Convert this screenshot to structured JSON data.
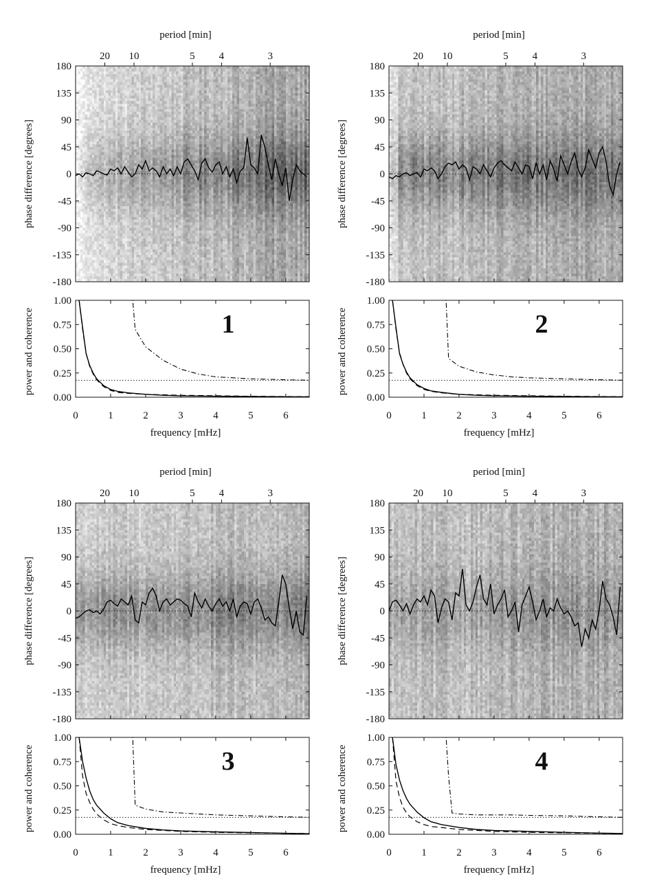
{
  "chart_data": [
    {
      "type": "heatmap+line",
      "panel_number": "1",
      "top_axis_label": "period [min]",
      "top_ticks": [
        "20",
        "10",
        "5",
        "4",
        "3"
      ],
      "top_tick_values_min": [
        20,
        10,
        5,
        4,
        3
      ],
      "x_ticks": [
        "0",
        "1",
        "2",
        "3",
        "4",
        "5",
        "6"
      ],
      "xlabel": "frequency [mHz]",
      "xlim": [
        0,
        6.67
      ],
      "phase_ylabel": "phase difference [degrees]",
      "phase_yticks": [
        "180",
        "135",
        "90",
        "45",
        "0",
        "-45",
        "-90",
        "-135",
        "-180"
      ],
      "phase_ylim": [
        -180,
        180
      ],
      "phase_x": [
        0.0,
        0.1,
        0.2,
        0.3,
        0.4,
        0.5,
        0.6,
        0.7,
        0.8,
        0.9,
        1.0,
        1.1,
        1.2,
        1.3,
        1.4,
        1.5,
        1.6,
        1.7,
        1.8,
        1.9,
        2.0,
        2.1,
        2.2,
        2.3,
        2.4,
        2.5,
        2.6,
        2.7,
        2.8,
        2.9,
        3.0,
        3.1,
        3.2,
        3.3,
        3.4,
        3.5,
        3.6,
        3.7,
        3.8,
        3.9,
        4.0,
        4.1,
        4.2,
        4.3,
        4.4,
        4.5,
        4.6,
        4.7,
        4.8,
        4.9,
        5.0,
        5.1,
        5.2,
        5.3,
        5.4,
        5.5,
        5.6,
        5.7,
        5.8,
        5.9,
        6.0,
        6.1,
        6.2,
        6.3,
        6.4,
        6.5,
        6.6
      ],
      "phase_mean": [
        -3,
        0,
        -5,
        2,
        0,
        -3,
        5,
        3,
        0,
        -2,
        8,
        5,
        10,
        0,
        12,
        3,
        -5,
        0,
        15,
        8,
        22,
        5,
        10,
        5,
        -5,
        12,
        0,
        8,
        -3,
        12,
        0,
        20,
        25,
        15,
        5,
        -10,
        18,
        25,
        10,
        3,
        15,
        20,
        0,
        12,
        -5,
        8,
        -15,
        5,
        10,
        60,
        15,
        10,
        0,
        65,
        45,
        15,
        -10,
        25,
        0,
        -20,
        10,
        -45,
        -10,
        15,
        5,
        0,
        -5
      ],
      "power_ylabel": "power and coherence",
      "power_yticks": [
        "1.00",
        "0.75",
        "0.50",
        "0.25",
        "0.00"
      ],
      "power_ylim": [
        0,
        1
      ],
      "power_x": [
        0.1,
        0.2,
        0.3,
        0.4,
        0.5,
        0.6,
        0.8,
        1.0,
        1.2,
        1.5,
        2.0,
        2.5,
        3.0,
        4.0,
        5.0,
        6.0,
        6.67
      ],
      "power_solid": [
        1.0,
        0.72,
        0.45,
        0.33,
        0.25,
        0.19,
        0.12,
        0.08,
        0.06,
        0.045,
        0.03,
        0.02,
        0.015,
        0.01,
        0.007,
        0.005,
        0.004
      ],
      "power_dashed": [
        1.0,
        0.7,
        0.45,
        0.32,
        0.24,
        0.18,
        0.11,
        0.07,
        0.05,
        0.04,
        0.03,
        0.025,
        0.02,
        0.015,
        0.01,
        0.007,
        0.006
      ],
      "coherence_x": [
        0.0,
        1.6,
        1.63,
        1.7,
        2.0,
        2.5,
        3.0,
        3.5,
        4.0,
        5.0,
        6.0,
        6.67
      ],
      "coherence": [
        1.0,
        1.0,
        1.0,
        0.7,
        0.52,
        0.38,
        0.29,
        0.24,
        0.21,
        0.19,
        0.18,
        0.175
      ],
      "significance_level": 0.175
    },
    {
      "type": "heatmap+line",
      "panel_number": "2",
      "top_axis_label": "period [min]",
      "top_ticks": [
        "20",
        "10",
        "5",
        "4",
        "3"
      ],
      "top_tick_values_min": [
        20,
        10,
        5,
        4,
        3
      ],
      "x_ticks": [
        "0",
        "1",
        "2",
        "3",
        "4",
        "5",
        "6"
      ],
      "xlabel": "frequency [mHz]",
      "xlim": [
        0,
        6.67
      ],
      "phase_ylabel": "phase difference [degrees]",
      "phase_yticks": [
        "180",
        "135",
        "90",
        "45",
        "0",
        "-45",
        "-90",
        "-135",
        "-180"
      ],
      "phase_ylim": [
        -180,
        180
      ],
      "phase_x": [
        0.0,
        0.1,
        0.2,
        0.3,
        0.4,
        0.5,
        0.6,
        0.7,
        0.8,
        0.9,
        1.0,
        1.1,
        1.2,
        1.3,
        1.4,
        1.5,
        1.6,
        1.7,
        1.8,
        1.9,
        2.0,
        2.1,
        2.2,
        2.3,
        2.4,
        2.5,
        2.6,
        2.7,
        2.8,
        2.9,
        3.0,
        3.1,
        3.2,
        3.3,
        3.4,
        3.5,
        3.6,
        3.7,
        3.8,
        3.9,
        4.0,
        4.1,
        4.2,
        4.3,
        4.4,
        4.5,
        4.6,
        4.7,
        4.8,
        4.9,
        5.0,
        5.1,
        5.2,
        5.3,
        5.4,
        5.5,
        5.6,
        5.7,
        5.8,
        5.9,
        6.0,
        6.1,
        6.2,
        6.3,
        6.4,
        6.5,
        6.6
      ],
      "phase_mean": [
        -5,
        -8,
        -3,
        -5,
        0,
        2,
        -3,
        0,
        2,
        -5,
        8,
        5,
        10,
        5,
        -8,
        0,
        12,
        18,
        15,
        20,
        8,
        15,
        10,
        -10,
        12,
        8,
        0,
        15,
        5,
        -5,
        10,
        18,
        22,
        15,
        10,
        5,
        20,
        10,
        0,
        15,
        12,
        -8,
        18,
        0,
        15,
        -10,
        22,
        8,
        -12,
        30,
        15,
        0,
        20,
        35,
        8,
        -5,
        10,
        40,
        25,
        10,
        35,
        45,
        20,
        -20,
        -35,
        0,
        20
      ],
      "power_ylabel": "power and coherence",
      "power_yticks": [
        "1.00",
        "0.75",
        "0.50",
        "0.25",
        "0.00"
      ],
      "power_ylim": [
        0,
        1
      ],
      "power_x": [
        0.1,
        0.2,
        0.3,
        0.4,
        0.5,
        0.6,
        0.8,
        1.0,
        1.2,
        1.5,
        2.0,
        2.5,
        3.0,
        4.0,
        5.0,
        6.0,
        6.67
      ],
      "power_solid": [
        1.0,
        0.72,
        0.45,
        0.34,
        0.26,
        0.2,
        0.13,
        0.09,
        0.065,
        0.05,
        0.03,
        0.02,
        0.015,
        0.01,
        0.007,
        0.005,
        0.004
      ],
      "power_dashed": [
        1.0,
        0.7,
        0.46,
        0.34,
        0.25,
        0.19,
        0.12,
        0.08,
        0.06,
        0.045,
        0.03,
        0.025,
        0.02,
        0.015,
        0.01,
        0.007,
        0.006
      ],
      "coherence_x": [
        0.0,
        1.6,
        1.63,
        1.7,
        2.0,
        2.5,
        3.0,
        3.5,
        4.0,
        5.0,
        6.0,
        6.67
      ],
      "coherence": [
        1.0,
        1.0,
        1.0,
        0.4,
        0.32,
        0.26,
        0.23,
        0.21,
        0.2,
        0.19,
        0.18,
        0.175
      ],
      "significance_level": 0.175
    },
    {
      "type": "heatmap+line",
      "panel_number": "3",
      "top_axis_label": "period [min]",
      "top_ticks": [
        "20",
        "10",
        "5",
        "4",
        "3"
      ],
      "top_tick_values_min": [
        20,
        10,
        5,
        4,
        3
      ],
      "x_ticks": [
        "0",
        "1",
        "2",
        "3",
        "4",
        "5",
        "6"
      ],
      "xlabel": "frequency [mHz]",
      "xlim": [
        0,
        6.67
      ],
      "phase_ylabel": "phase difference [degrees]",
      "phase_yticks": [
        "180",
        "135",
        "90",
        "45",
        "0",
        "-45",
        "-90",
        "-135",
        "-180"
      ],
      "phase_ylim": [
        -180,
        180
      ],
      "phase_x": [
        0.0,
        0.1,
        0.2,
        0.3,
        0.4,
        0.5,
        0.6,
        0.7,
        0.8,
        0.9,
        1.0,
        1.1,
        1.2,
        1.3,
        1.4,
        1.5,
        1.6,
        1.7,
        1.8,
        1.9,
        2.0,
        2.1,
        2.2,
        2.3,
        2.4,
        2.5,
        2.6,
        2.7,
        2.8,
        2.9,
        3.0,
        3.1,
        3.2,
        3.3,
        3.4,
        3.5,
        3.6,
        3.7,
        3.8,
        3.9,
        4.0,
        4.1,
        4.2,
        4.3,
        4.4,
        4.5,
        4.6,
        4.7,
        4.8,
        4.9,
        5.0,
        5.1,
        5.2,
        5.3,
        5.4,
        5.5,
        5.6,
        5.7,
        5.8,
        5.9,
        6.0,
        6.1,
        6.2,
        6.3,
        6.4,
        6.5,
        6.6
      ],
      "phase_mean": [
        -12,
        -10,
        -5,
        0,
        2,
        -3,
        0,
        -5,
        3,
        15,
        18,
        12,
        8,
        20,
        15,
        10,
        25,
        -15,
        -20,
        15,
        10,
        30,
        38,
        25,
        0,
        15,
        20,
        10,
        15,
        20,
        18,
        12,
        8,
        -10,
        30,
        15,
        5,
        20,
        8,
        0,
        12,
        20,
        8,
        15,
        0,
        20,
        -10,
        8,
        15,
        12,
        -5,
        15,
        20,
        5,
        -15,
        -10,
        -20,
        -25,
        15,
        60,
        45,
        5,
        -30,
        0,
        -35,
        -40,
        25
      ],
      "power_ylabel": "power and coherence",
      "power_yticks": [
        "1.00",
        "0.75",
        "0.50",
        "0.25",
        "0.00"
      ],
      "power_ylim": [
        0,
        1
      ],
      "power_x": [
        0.1,
        0.2,
        0.3,
        0.4,
        0.5,
        0.6,
        0.8,
        1.0,
        1.2,
        1.5,
        2.0,
        2.5,
        3.0,
        4.0,
        5.0,
        6.0,
        6.67
      ],
      "power_solid": [
        1.0,
        0.75,
        0.58,
        0.45,
        0.36,
        0.3,
        0.22,
        0.16,
        0.12,
        0.09,
        0.06,
        0.045,
        0.035,
        0.025,
        0.018,
        0.01,
        0.006
      ],
      "power_dashed": [
        1.0,
        0.6,
        0.42,
        0.33,
        0.26,
        0.21,
        0.15,
        0.11,
        0.09,
        0.07,
        0.05,
        0.04,
        0.03,
        0.02,
        0.015,
        0.01,
        0.008
      ],
      "coherence_x": [
        0.0,
        1.6,
        1.63,
        1.7,
        2.0,
        2.5,
        3.0,
        3.5,
        4.0,
        5.0,
        6.0,
        6.67
      ],
      "coherence": [
        1.0,
        1.0,
        1.0,
        0.3,
        0.26,
        0.23,
        0.22,
        0.21,
        0.2,
        0.19,
        0.18,
        0.175
      ],
      "significance_level": 0.175
    },
    {
      "type": "heatmap+line",
      "panel_number": "4",
      "top_axis_label": "period [min]",
      "top_ticks": [
        "20",
        "10",
        "5",
        "4",
        "3"
      ],
      "top_tick_values_min": [
        20,
        10,
        5,
        4,
        3
      ],
      "x_ticks": [
        "0",
        "1",
        "2",
        "3",
        "4",
        "5",
        "6"
      ],
      "xlabel": "frequency [mHz]",
      "xlim": [
        0,
        6.67
      ],
      "phase_ylabel": "phase difference [degrees]",
      "phase_yticks": [
        "180",
        "135",
        "90",
        "45",
        "0",
        "-45",
        "-90",
        "-135",
        "-180"
      ],
      "phase_ylim": [
        -180,
        180
      ],
      "phase_x": [
        0.0,
        0.1,
        0.2,
        0.3,
        0.4,
        0.5,
        0.6,
        0.7,
        0.8,
        0.9,
        1.0,
        1.1,
        1.2,
        1.3,
        1.4,
        1.5,
        1.6,
        1.7,
        1.8,
        1.9,
        2.0,
        2.1,
        2.2,
        2.3,
        2.4,
        2.5,
        2.6,
        2.7,
        2.8,
        2.9,
        3.0,
        3.1,
        3.2,
        3.3,
        3.4,
        3.5,
        3.6,
        3.7,
        3.8,
        3.9,
        4.0,
        4.1,
        4.2,
        4.3,
        4.4,
        4.5,
        4.6,
        4.7,
        4.8,
        4.9,
        5.0,
        5.1,
        5.2,
        5.3,
        5.4,
        5.5,
        5.6,
        5.7,
        5.8,
        5.9,
        6.0,
        6.1,
        6.2,
        6.3,
        6.4,
        6.5,
        6.6
      ],
      "phase_mean": [
        0,
        15,
        18,
        10,
        0,
        12,
        -5,
        10,
        20,
        15,
        25,
        10,
        35,
        25,
        -20,
        5,
        20,
        15,
        -15,
        30,
        25,
        70,
        10,
        0,
        15,
        40,
        60,
        20,
        10,
        45,
        -5,
        10,
        20,
        35,
        -10,
        0,
        15,
        -35,
        10,
        25,
        40,
        15,
        -15,
        0,
        20,
        -10,
        5,
        0,
        20,
        5,
        -5,
        0,
        -10,
        -25,
        -20,
        -60,
        -30,
        -45,
        -15,
        -30,
        0,
        50,
        20,
        10,
        -10,
        -40,
        40
      ],
      "power_ylabel": "power and coherence",
      "power_yticks": [
        "1.00",
        "0.75",
        "0.50",
        "0.25",
        "0.00"
      ],
      "power_ylim": [
        0,
        1
      ],
      "power_x": [
        0.1,
        0.2,
        0.3,
        0.4,
        0.5,
        0.6,
        0.8,
        1.0,
        1.2,
        1.5,
        2.0,
        2.5,
        3.0,
        4.0,
        5.0,
        6.0,
        6.67
      ],
      "power_solid": [
        1.0,
        0.72,
        0.56,
        0.45,
        0.37,
        0.31,
        0.23,
        0.17,
        0.13,
        0.1,
        0.07,
        0.05,
        0.04,
        0.03,
        0.02,
        0.012,
        0.008
      ],
      "power_dashed": [
        1.0,
        0.55,
        0.38,
        0.28,
        0.22,
        0.18,
        0.13,
        0.1,
        0.08,
        0.07,
        0.05,
        0.04,
        0.03,
        0.02,
        0.015,
        0.01,
        0.008
      ],
      "coherence_x": [
        0.0,
        1.6,
        1.63,
        1.7,
        1.8,
        2.0,
        2.5,
        3.0,
        3.5,
        4.0,
        5.0,
        6.0,
        6.67
      ],
      "coherence": [
        1.0,
        1.0,
        1.0,
        0.6,
        0.22,
        0.21,
        0.2,
        0.2,
        0.2,
        0.195,
        0.19,
        0.18,
        0.175
      ],
      "significance_level": 0.175
    }
  ]
}
